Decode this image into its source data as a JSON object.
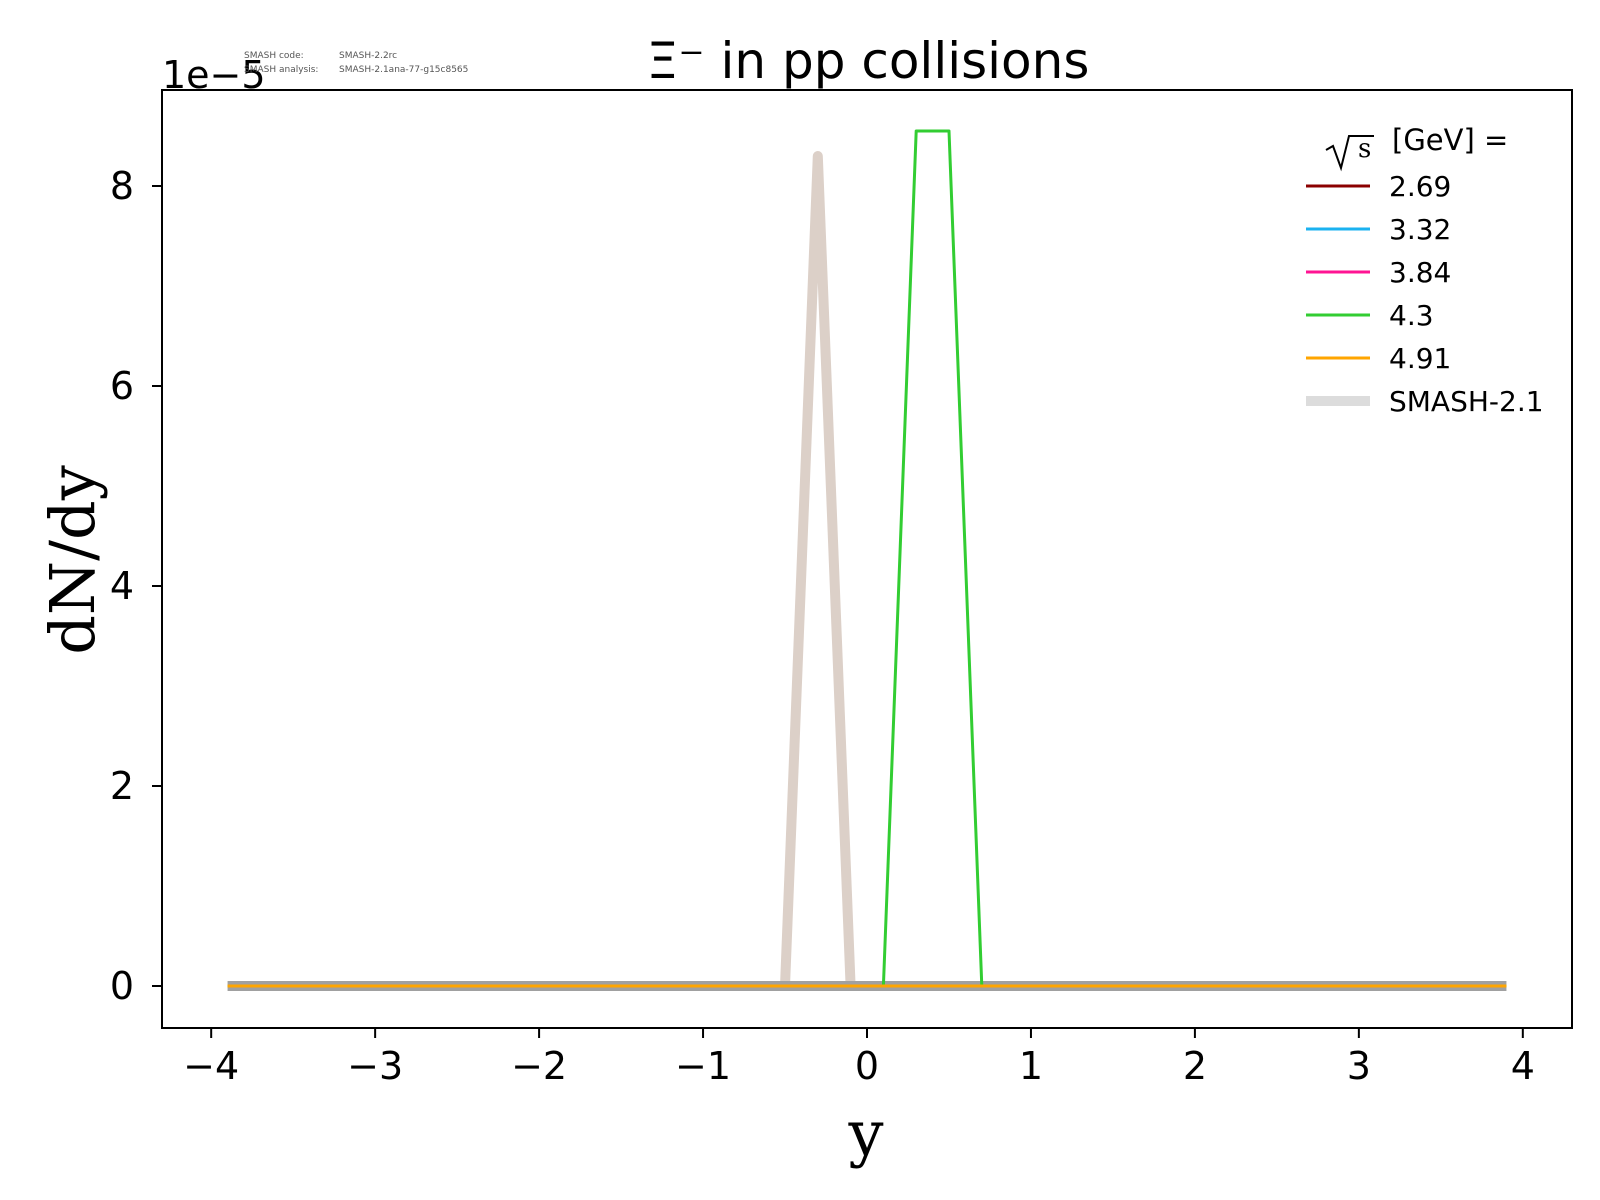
{
  "chart_data": {
    "type": "line",
    "title": "Ξ⁻ in pp collisions",
    "xlabel": "y",
    "ylabel": "dN/dy",
    "y_exponent_label": "1e−5",
    "xlim": [
      -4.3,
      4.3
    ],
    "ylim": [
      -0.42,
      8.96
    ],
    "y_scale_factor": "1e-5",
    "xticks": [
      -4,
      -3,
      -2,
      -1,
      0,
      1,
      2,
      3,
      4
    ],
    "xtick_labels": [
      "−4",
      "−3",
      "−2",
      "−1",
      "0",
      "1",
      "2",
      "3",
      "4"
    ],
    "yticks": [
      0,
      2,
      4,
      6,
      8
    ],
    "ytick_labels": [
      "0",
      "2",
      "4",
      "6",
      "8"
    ],
    "grid": false,
    "legend_title_prefix": "√s",
    "legend_title_suffix": "[GeV] =",
    "legend_placement": "top-right",
    "version_text": {
      "line1_label": "SMASH code:",
      "line1_value": "SMASH-2.2rc",
      "line2_label": "SMASH analysis:",
      "line2_value": "SMASH-2.1ana-77-g15c8565"
    },
    "series": [
      {
        "name": "SMASH-2.1",
        "color": "#dcd0c8",
        "style": "thick",
        "x": [
          -3.9,
          -0.5,
          -0.3,
          -0.1,
          3.9
        ],
        "y": [
          0,
          0,
          8.3,
          0,
          0
        ]
      },
      {
        "name": "SMASH-2.1",
        "color": "#a0a0a0",
        "style": "thick",
        "x": [
          -3.9,
          -0.5,
          -0.1,
          3.9
        ],
        "y": [
          0,
          0,
          0,
          0
        ]
      },
      {
        "name": "2.69",
        "color": "#8b0000",
        "x": [
          -3.9,
          3.9
        ],
        "y": [
          0,
          0
        ]
      },
      {
        "name": "3.32",
        "color": "#1ab2f0",
        "x": [
          -3.9,
          3.9
        ],
        "y": [
          0,
          0
        ]
      },
      {
        "name": "3.84",
        "color": "#ff1493",
        "x": [
          -3.9,
          3.9
        ],
        "y": [
          0,
          0
        ]
      },
      {
        "name": "4.3",
        "color": "#32cd32",
        "x": [
          -3.9,
          0.1,
          0.3,
          0.5,
          0.7,
          3.9
        ],
        "y": [
          0,
          0,
          8.55,
          8.55,
          0,
          0
        ]
      },
      {
        "name": "4.91",
        "color": "#ffa500",
        "x": [
          -3.9,
          3.9
        ],
        "y": [
          0,
          0
        ]
      }
    ],
    "legend": [
      {
        "label": "2.69",
        "color": "#8b0000",
        "thick": false
      },
      {
        "label": "3.32",
        "color": "#1ab2f0",
        "thick": false
      },
      {
        "label": "3.84",
        "color": "#ff1493",
        "thick": false
      },
      {
        "label": "4.3",
        "color": "#32cd32",
        "thick": false
      },
      {
        "label": "4.91",
        "color": "#ffa500",
        "thick": false
      },
      {
        "label": "SMASH-2.1",
        "color": "#dcdcdc",
        "thick": true
      }
    ]
  }
}
